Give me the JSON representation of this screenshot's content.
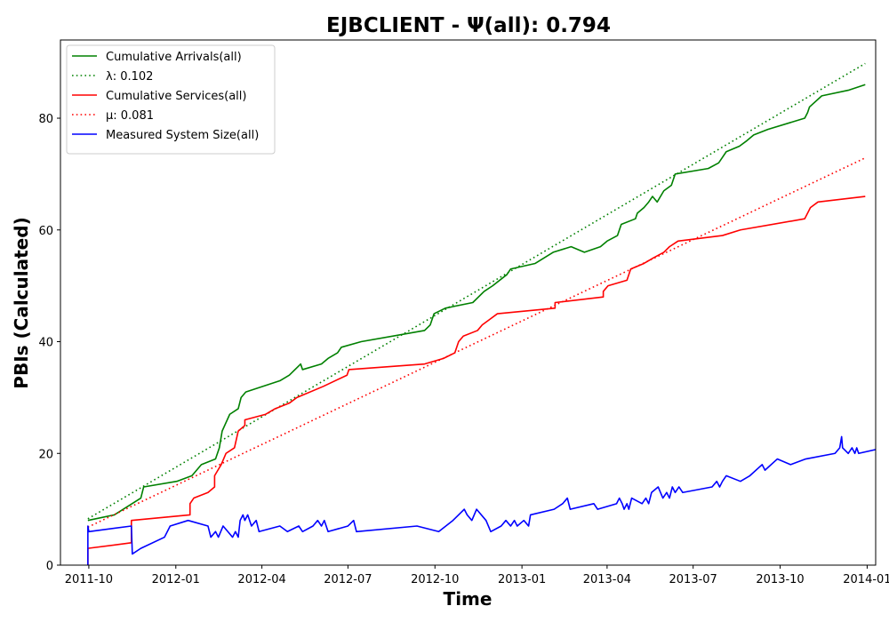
{
  "chart_data": {
    "type": "line",
    "title": "EJBCLIENT -  Ψ(all): 0.794",
    "xlabel": "Time",
    "ylabel": "PBIs (Calculated)",
    "x_is_date": true,
    "xlim": [
      "2011-09-01",
      "2014-01-10"
    ],
    "ylim": [
      0,
      94
    ],
    "xticks": [
      {
        "date": "2011-10-01",
        "label": "2011-10"
      },
      {
        "date": "2012-01-01",
        "label": "2012-01"
      },
      {
        "date": "2012-04-01",
        "label": "2012-04"
      },
      {
        "date": "2012-07-01",
        "label": "2012-07"
      },
      {
        "date": "2012-10-01",
        "label": "2012-10"
      },
      {
        "date": "2013-01-01",
        "label": "2013-01"
      },
      {
        "date": "2013-04-01",
        "label": "2013-04"
      },
      {
        "date": "2013-07-01",
        "label": "2013-07"
      },
      {
        "date": "2013-10-01",
        "label": "2013-10"
      },
      {
        "date": "2014-01-01",
        "label": "2014-01"
      }
    ],
    "yticks": [
      0,
      20,
      40,
      60,
      80
    ],
    "grid": false,
    "legend_position": "top-left",
    "series": [
      {
        "name": "Cumulative Arrivals(all)",
        "color": "#008000",
        "style": "solid",
        "points": [
          [
            "2011-09-30",
            8
          ],
          [
            "2011-10-28",
            9
          ],
          [
            "2011-11-25",
            12
          ],
          [
            "2011-11-28",
            14
          ],
          [
            "2012-01-02",
            15
          ],
          [
            "2012-01-18",
            16
          ],
          [
            "2012-01-28",
            18
          ],
          [
            "2012-02-12",
            19
          ],
          [
            "2012-02-16",
            21
          ],
          [
            "2012-02-19",
            24
          ],
          [
            "2012-02-27",
            27
          ],
          [
            "2012-03-07",
            28
          ],
          [
            "2012-03-10",
            30
          ],
          [
            "2012-03-15",
            31
          ],
          [
            "2012-04-20",
            33
          ],
          [
            "2012-04-30",
            34
          ],
          [
            "2012-05-06",
            35
          ],
          [
            "2012-05-12",
            36
          ],
          [
            "2012-05-14",
            35
          ],
          [
            "2012-06-03",
            36
          ],
          [
            "2012-06-10",
            37
          ],
          [
            "2012-06-20",
            38
          ],
          [
            "2012-06-24",
            39
          ],
          [
            "2012-07-15",
            40
          ],
          [
            "2012-09-20",
            42
          ],
          [
            "2012-09-26",
            43
          ],
          [
            "2012-09-30",
            45
          ],
          [
            "2012-10-12",
            46
          ],
          [
            "2012-11-10",
            47
          ],
          [
            "2012-11-22",
            49
          ],
          [
            "2012-12-01",
            50
          ],
          [
            "2012-12-16",
            52
          ],
          [
            "2012-12-20",
            53
          ],
          [
            "2013-01-15",
            54
          ],
          [
            "2013-02-03",
            56
          ],
          [
            "2013-02-22",
            57
          ],
          [
            "2013-03-08",
            56
          ],
          [
            "2013-03-25",
            57
          ],
          [
            "2013-04-01",
            58
          ],
          [
            "2013-04-12",
            59
          ],
          [
            "2013-04-16",
            61
          ],
          [
            "2013-05-01",
            62
          ],
          [
            "2013-05-03",
            63
          ],
          [
            "2013-05-10",
            64
          ],
          [
            "2013-05-15",
            65
          ],
          [
            "2013-05-19",
            66
          ],
          [
            "2013-05-24",
            65
          ],
          [
            "2013-05-31",
            67
          ],
          [
            "2013-06-08",
            68
          ],
          [
            "2013-06-12",
            70
          ],
          [
            "2013-07-17",
            71
          ],
          [
            "2013-07-28",
            72
          ],
          [
            "2013-08-01",
            73
          ],
          [
            "2013-08-05",
            74
          ],
          [
            "2013-08-19",
            75
          ],
          [
            "2013-08-27",
            76
          ],
          [
            "2013-09-03",
            77
          ],
          [
            "2013-09-18",
            78
          ],
          [
            "2013-10-27",
            80
          ],
          [
            "2013-10-30",
            81
          ],
          [
            "2013-11-01",
            82
          ],
          [
            "2013-11-14",
            84
          ],
          [
            "2013-12-12",
            85
          ],
          [
            "2013-12-30",
            86
          ]
        ]
      },
      {
        "name": "λ: 0.102",
        "color": "#008000",
        "style": "dotted",
        "points": [
          [
            "2011-09-30",
            8.3
          ],
          [
            "2013-12-30",
            89.8
          ]
        ]
      },
      {
        "name": "Cumulative Services(all)",
        "color": "#ff0000",
        "style": "solid",
        "points": [
          [
            "2011-09-30",
            0
          ],
          [
            "2011-09-30",
            3
          ],
          [
            "2011-11-15",
            4
          ],
          [
            "2011-11-15",
            8
          ],
          [
            "2012-01-16",
            9
          ],
          [
            "2012-01-16",
            11
          ],
          [
            "2012-01-20",
            12
          ],
          [
            "2012-02-04",
            13
          ],
          [
            "2012-02-11",
            14
          ],
          [
            "2012-02-11",
            16
          ],
          [
            "2012-02-18",
            18
          ],
          [
            "2012-02-23",
            20
          ],
          [
            "2012-03-03",
            21
          ],
          [
            "2012-03-07",
            24
          ],
          [
            "2012-03-14",
            25
          ],
          [
            "2012-03-14",
            26
          ],
          [
            "2012-04-05",
            27
          ],
          [
            "2012-04-15",
            28
          ],
          [
            "2012-04-30",
            29
          ],
          [
            "2012-05-08",
            30
          ],
          [
            "2012-06-05",
            32
          ],
          [
            "2012-06-30",
            34
          ],
          [
            "2012-07-02",
            35
          ],
          [
            "2012-09-20",
            36
          ],
          [
            "2012-10-10",
            37
          ],
          [
            "2012-10-22",
            38
          ],
          [
            "2012-10-26",
            40
          ],
          [
            "2012-10-31",
            41
          ],
          [
            "2012-11-15",
            42
          ],
          [
            "2012-11-20",
            43
          ],
          [
            "2012-11-28",
            44
          ],
          [
            "2012-12-06",
            45
          ],
          [
            "2013-02-05",
            46
          ],
          [
            "2013-02-05",
            47
          ],
          [
            "2013-03-28",
            48
          ],
          [
            "2013-03-28",
            49
          ],
          [
            "2013-04-02",
            50
          ],
          [
            "2013-04-22",
            51
          ],
          [
            "2013-04-26",
            53
          ],
          [
            "2013-05-10",
            54
          ],
          [
            "2013-05-20",
            55
          ],
          [
            "2013-05-31",
            56
          ],
          [
            "2013-06-06",
            57
          ],
          [
            "2013-06-15",
            58
          ],
          [
            "2013-08-01",
            59
          ],
          [
            "2013-08-20",
            60
          ],
          [
            "2013-10-27",
            62
          ],
          [
            "2013-11-02",
            64
          ],
          [
            "2013-11-10",
            65
          ],
          [
            "2013-12-30",
            66
          ]
        ]
      },
      {
        "name": "μ: 0.081",
        "color": "#ff0000",
        "style": "dotted",
        "points": [
          [
            "2011-09-30",
            6.8
          ],
          [
            "2013-12-30",
            72.9
          ]
        ]
      },
      {
        "name": "Measured System Size(all)",
        "color": "#0000ff",
        "style": "solid",
        "points": [
          [
            "2011-09-30",
            0
          ],
          [
            "2011-09-30",
            7
          ],
          [
            "2011-10-01",
            6
          ],
          [
            "2011-11-15",
            7
          ],
          [
            "2011-11-16",
            2
          ],
          [
            "2011-11-25",
            3
          ],
          [
            "2011-12-20",
            5
          ],
          [
            "2011-12-26",
            7
          ],
          [
            "2012-01-14",
            8
          ],
          [
            "2012-02-04",
            7
          ],
          [
            "2012-02-07",
            5
          ],
          [
            "2012-02-12",
            6
          ],
          [
            "2012-02-15",
            5
          ],
          [
            "2012-02-20",
            7
          ],
          [
            "2012-03-01",
            5
          ],
          [
            "2012-03-04",
            6
          ],
          [
            "2012-03-07",
            5
          ],
          [
            "2012-03-09",
            8
          ],
          [
            "2012-03-12",
            9
          ],
          [
            "2012-03-14",
            8
          ],
          [
            "2012-03-17",
            9
          ],
          [
            "2012-03-21",
            7
          ],
          [
            "2012-03-26",
            8
          ],
          [
            "2012-03-29",
            6
          ],
          [
            "2012-04-20",
            7
          ],
          [
            "2012-04-28",
            6
          ],
          [
            "2012-05-10",
            7
          ],
          [
            "2012-05-14",
            6
          ],
          [
            "2012-05-25",
            7
          ],
          [
            "2012-05-30",
            8
          ],
          [
            "2012-06-03",
            7
          ],
          [
            "2012-06-06",
            8
          ],
          [
            "2012-06-10",
            6
          ],
          [
            "2012-07-01",
            7
          ],
          [
            "2012-07-07",
            8
          ],
          [
            "2012-07-10",
            6
          ],
          [
            "2012-09-12",
            7
          ],
          [
            "2012-10-05",
            6
          ],
          [
            "2012-10-20",
            8
          ],
          [
            "2012-10-26",
            9
          ],
          [
            "2012-11-01",
            10
          ],
          [
            "2012-11-04",
            9
          ],
          [
            "2012-11-09",
            8
          ],
          [
            "2012-11-14",
            10
          ],
          [
            "2012-11-24",
            8
          ],
          [
            "2012-11-29",
            6
          ],
          [
            "2012-12-10",
            7
          ],
          [
            "2012-12-15",
            8
          ],
          [
            "2012-12-20",
            7
          ],
          [
            "2012-12-24",
            8
          ],
          [
            "2012-12-27",
            7
          ],
          [
            "2013-01-03",
            8
          ],
          [
            "2013-01-08",
            7
          ],
          [
            "2013-01-10",
            9
          ],
          [
            "2013-02-04",
            10
          ],
          [
            "2013-02-13",
            11
          ],
          [
            "2013-02-18",
            12
          ],
          [
            "2013-02-21",
            10
          ],
          [
            "2013-03-18",
            11
          ],
          [
            "2013-03-22",
            10
          ],
          [
            "2013-04-11",
            11
          ],
          [
            "2013-04-14",
            12
          ],
          [
            "2013-04-17",
            11
          ],
          [
            "2013-04-19",
            10
          ],
          [
            "2013-04-22",
            11
          ],
          [
            "2013-04-24",
            10
          ],
          [
            "2013-04-27",
            12
          ],
          [
            "2013-05-08",
            11
          ],
          [
            "2013-05-12",
            12
          ],
          [
            "2013-05-15",
            11
          ],
          [
            "2013-05-18",
            13
          ],
          [
            "2013-05-25",
            14
          ],
          [
            "2013-05-30",
            12
          ],
          [
            "2013-06-03",
            13
          ],
          [
            "2013-06-06",
            12
          ],
          [
            "2013-06-09",
            14
          ],
          [
            "2013-06-12",
            13
          ],
          [
            "2013-06-16",
            14
          ],
          [
            "2013-06-20",
            13
          ],
          [
            "2013-07-21",
            14
          ],
          [
            "2013-07-26",
            15
          ],
          [
            "2013-07-29",
            14
          ],
          [
            "2013-08-01",
            15
          ],
          [
            "2013-08-05",
            16
          ],
          [
            "2013-08-20",
            15
          ],
          [
            "2013-08-30",
            16
          ],
          [
            "2013-09-12",
            18
          ],
          [
            "2013-09-15",
            17
          ],
          [
            "2013-09-28",
            19
          ],
          [
            "2013-10-12",
            18
          ],
          [
            "2013-10-28",
            19
          ],
          [
            "2013-11-28",
            20
          ],
          [
            "2013-12-03",
            21
          ],
          [
            "2013-12-05",
            23
          ],
          [
            "2013-12-06",
            21
          ],
          [
            "2013-12-12",
            20
          ],
          [
            "2013-12-16",
            21
          ],
          [
            "2013-12-19",
            20
          ],
          [
            "2013-12-21",
            21
          ],
          [
            "2013-12-23",
            20
          ],
          [
            "2014-01-18",
            21
          ],
          [
            "2014-02-20",
            22
          ],
          [
            "2014-02-23",
            21
          ]
        ]
      }
    ]
  }
}
